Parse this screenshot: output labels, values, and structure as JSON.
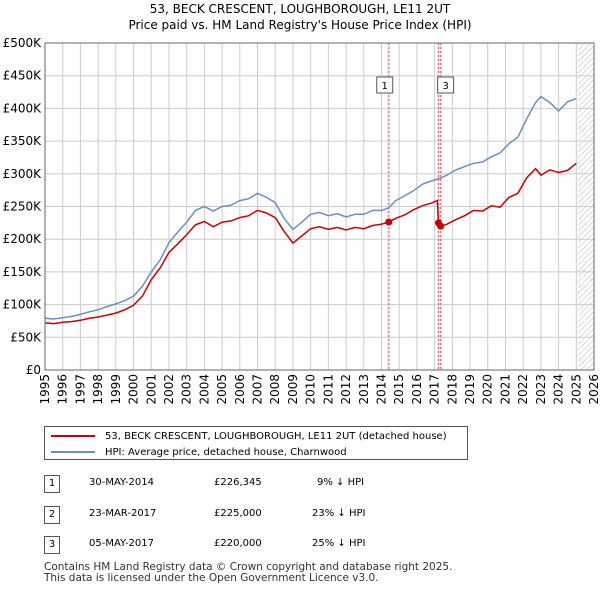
{
  "title_line1": "53, BECK CRESCENT, LOUGHBOROUGH, LE11 2UT",
  "title_line2": "Price paid vs. HM Land Registry's House Price Index (HPI)",
  "colors": {
    "property": "#cc0000",
    "hpi": "#6a8fc8",
    "grid": "#cccccc",
    "band": "#e8eef8",
    "marker_line": "#e06666"
  },
  "chart_data": {
    "type": "line",
    "title": "53, BECK CRESCENT, LOUGHBOROUGH, LE11 2UT — Price paid vs. HM Land Registry's House Price Index (HPI)",
    "xlim": [
      1995,
      2026
    ],
    "ylim": [
      0,
      500000
    ],
    "y_ticks": [
      0,
      50000,
      100000,
      150000,
      200000,
      250000,
      300000,
      350000,
      400000,
      450000,
      500000
    ],
    "y_tick_labels": [
      "£0",
      "£50K",
      "£100K",
      "£150K",
      "£200K",
      "£250K",
      "£300K",
      "£350K",
      "£400K",
      "£450K",
      "£500K"
    ],
    "x_ticks": [
      1995,
      1996,
      1997,
      1998,
      1999,
      2000,
      2001,
      2002,
      2003,
      2004,
      2005,
      2006,
      2007,
      2008,
      2009,
      2010,
      2011,
      2012,
      2013,
      2014,
      2015,
      2016,
      2017,
      2018,
      2019,
      2020,
      2021,
      2022,
      2023,
      2024,
      2025,
      2026
    ],
    "x_tick_labels": [
      "1995",
      "1996",
      "1997",
      "1998",
      "1999",
      "2000",
      "2001",
      "2002",
      "2003",
      "2004",
      "2005",
      "2006",
      "2007",
      "2008",
      "2009",
      "2010",
      "2011",
      "2012",
      "2013",
      "2014",
      "2015",
      "2016",
      "2017",
      "2018",
      "2019",
      "2020",
      "2021",
      "2022",
      "2023",
      "2024",
      "2025",
      "2026"
    ],
    "future_shade_from": 2025.1,
    "series": [
      {
        "name": "53, BECK CRESCENT, LOUGHBOROUGH, LE11 2UT (detached house)",
        "x": [
          1995.0,
          1995.5,
          1996.0,
          1996.5,
          1997.0,
          1997.5,
          1998.0,
          1998.5,
          1999.0,
          1999.5,
          2000.0,
          2000.5,
          2001.0,
          2001.5,
          2002.0,
          2002.5,
          2003.0,
          2003.5,
          2004.0,
          2004.5,
          2005.0,
          2005.5,
          2006.0,
          2006.5,
          2007.0,
          2007.5,
          2008.0,
          2008.5,
          2009.0,
          2009.5,
          2010.0,
          2010.5,
          2011.0,
          2011.5,
          2012.0,
          2012.5,
          2013.0,
          2013.5,
          2014.0,
          2014.41,
          2014.8,
          2015.3,
          2015.8,
          2016.3,
          2016.8,
          2017.15,
          2017.22,
          2017.34,
          2017.7,
          2018.2,
          2018.7,
          2019.2,
          2019.7,
          2020.2,
          2020.7,
          2021.2,
          2021.7,
          2022.2,
          2022.7,
          2023.0,
          2023.5,
          2024.0,
          2024.5,
          2025.0
        ],
        "values": [
          72000,
          71000,
          73000,
          74000,
          76000,
          79000,
          81000,
          84000,
          87000,
          92000,
          99000,
          113000,
          138000,
          156000,
          180000,
          193000,
          207000,
          222000,
          227000,
          219000,
          226000,
          228000,
          233000,
          236000,
          244000,
          240000,
          233000,
          212000,
          194000,
          205000,
          216000,
          219000,
          215000,
          218000,
          214000,
          218000,
          216000,
          221000,
          223000,
          226345,
          232000,
          237000,
          245000,
          251000,
          255000,
          259000,
          225000,
          220000,
          223000,
          230000,
          236000,
          244000,
          243000,
          251000,
          249000,
          264000,
          270000,
          294000,
          308000,
          298000,
          306000,
          302000,
          305000,
          316000
        ]
      },
      {
        "name": "HPI: Average price, detached house, Charnwood",
        "x": [
          1995.0,
          1995.5,
          1996.0,
          1996.5,
          1997.0,
          1997.5,
          1998.0,
          1998.5,
          1999.0,
          1999.5,
          2000.0,
          2000.5,
          2001.0,
          2001.5,
          2002.0,
          2002.5,
          2003.0,
          2003.5,
          2004.0,
          2004.5,
          2005.0,
          2005.5,
          2006.0,
          2006.5,
          2007.0,
          2007.5,
          2008.0,
          2008.5,
          2009.0,
          2009.5,
          2010.0,
          2010.5,
          2011.0,
          2011.5,
          2012.0,
          2012.5,
          2013.0,
          2013.5,
          2014.0,
          2014.41,
          2014.8,
          2015.3,
          2015.8,
          2016.3,
          2016.8,
          2017.3,
          2017.7,
          2018.2,
          2018.7,
          2019.2,
          2019.7,
          2020.2,
          2020.7,
          2021.2,
          2021.7,
          2022.2,
          2022.7,
          2023.0,
          2023.5,
          2024.0,
          2024.5,
          2025.0
        ],
        "values": [
          79000,
          78000,
          80000,
          82000,
          85000,
          89000,
          92000,
          97000,
          101000,
          106000,
          113000,
          128000,
          150000,
          168000,
          195000,
          211000,
          226000,
          244000,
          250000,
          243000,
          250000,
          252000,
          259000,
          262000,
          270000,
          264000,
          256000,
          232000,
          215000,
          226000,
          238000,
          241000,
          236000,
          239000,
          234000,
          238000,
          238000,
          244000,
          244000,
          248000,
          259000,
          266000,
          274000,
          284000,
          289000,
          293000,
          298000,
          306000,
          311000,
          316000,
          318000,
          326000,
          332000,
          346000,
          356000,
          384000,
          409000,
          418000,
          409000,
          396000,
          410000,
          415000
        ]
      }
    ],
    "transactions": [
      {
        "marker": "1",
        "x": 2014.41,
        "price": 226345,
        "date": "30-MAY-2014",
        "price_label": "£226,345",
        "hpi_diff": "9% ↓ HPI"
      },
      {
        "marker": "2",
        "x": 2017.22,
        "price": 225000,
        "date": "23-MAR-2017",
        "price_label": "£225,000",
        "hpi_diff": "23% ↓ HPI"
      },
      {
        "marker": "3",
        "x": 2017.34,
        "price": 220000,
        "date": "05-MAY-2017",
        "price_label": "£220,000",
        "hpi_diff": "25% ↓ HPI"
      }
    ]
  },
  "legend": {
    "property_label": "53, BECK CRESCENT, LOUGHBOROUGH, LE11 2UT (detached house)",
    "hpi_label": "HPI: Average price, detached house, Charnwood"
  },
  "footer": {
    "line1": "Contains HM Land Registry data © Crown copyright and database right 2025.",
    "line2": "This data is licensed under the Open Government Licence v3.0."
  }
}
